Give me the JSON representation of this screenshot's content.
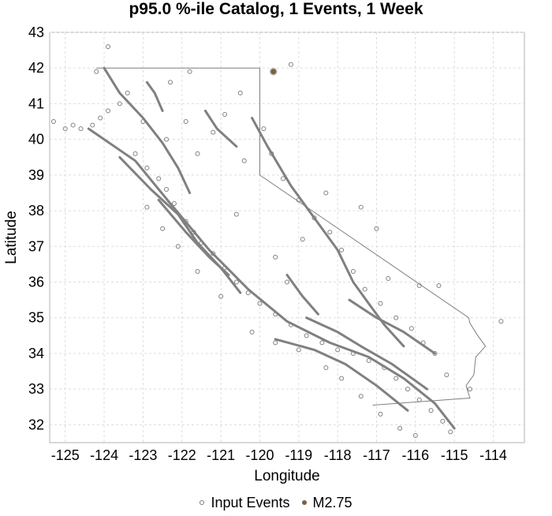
{
  "chart_data": {
    "type": "scatter",
    "title": "p95.0 %-ile Catalog, 1 Events, 1 Week",
    "xlabel": "Longitude",
    "ylabel": "Latitude",
    "xlim": [
      -125.4,
      -113.2
    ],
    "ylim": [
      31.5,
      43.0
    ],
    "x_ticks": [
      -125,
      -124,
      -123,
      -122,
      -121,
      -120,
      -119,
      -118,
      -117,
      -116,
      -115,
      -114
    ],
    "y_ticks": [
      32,
      33,
      34,
      35,
      36,
      37,
      38,
      39,
      40,
      41,
      42,
      43
    ],
    "grid": true,
    "legend_position": "bottom",
    "colors": {
      "input_events": "#808080",
      "event": "#7f5f3f",
      "boundary": "#808080"
    },
    "series": [
      {
        "name": "Input Events",
        "marker": "open-circle",
        "points": [
          [
            -124.3,
            40.4
          ],
          [
            -124.1,
            40.6
          ],
          [
            -123.9,
            40.8
          ],
          [
            -123.6,
            41.0
          ],
          [
            -123.4,
            41.3
          ],
          [
            -124.6,
            40.3
          ],
          [
            -124.8,
            40.4
          ],
          [
            -125.0,
            40.3
          ],
          [
            -125.3,
            40.5
          ],
          [
            -124.2,
            41.9
          ],
          [
            -123.2,
            39.6
          ],
          [
            -122.9,
            39.2
          ],
          [
            -122.6,
            38.9
          ],
          [
            -122.4,
            38.6
          ],
          [
            -122.2,
            38.2
          ],
          [
            -121.9,
            37.7
          ],
          [
            -121.7,
            37.4
          ],
          [
            -121.5,
            37.1
          ],
          [
            -121.2,
            36.8
          ],
          [
            -120.9,
            36.4
          ],
          [
            -120.6,
            36.0
          ],
          [
            -120.3,
            35.7
          ],
          [
            -120.0,
            35.4
          ],
          [
            -119.6,
            35.1
          ],
          [
            -119.2,
            34.8
          ],
          [
            -118.8,
            34.5
          ],
          [
            -118.4,
            34.3
          ],
          [
            -118.0,
            34.1
          ],
          [
            -117.6,
            34.0
          ],
          [
            -117.2,
            33.8
          ],
          [
            -116.8,
            33.6
          ],
          [
            -116.5,
            33.3
          ],
          [
            -116.2,
            33.0
          ],
          [
            -115.9,
            32.7
          ],
          [
            -115.6,
            32.4
          ],
          [
            -115.3,
            32.1
          ],
          [
            -115.1,
            31.8
          ],
          [
            -116.0,
            31.7
          ],
          [
            -116.4,
            31.9
          ],
          [
            -116.9,
            32.3
          ],
          [
            -117.4,
            32.8
          ],
          [
            -117.9,
            33.3
          ],
          [
            -118.3,
            33.6
          ],
          [
            -119.0,
            34.1
          ],
          [
            -119.6,
            34.3
          ],
          [
            -120.2,
            34.6
          ],
          [
            -121.0,
            35.6
          ],
          [
            -121.6,
            36.3
          ],
          [
            -122.1,
            37.0
          ],
          [
            -122.5,
            37.5
          ],
          [
            -122.9,
            38.1
          ],
          [
            -121.6,
            39.6
          ],
          [
            -121.2,
            40.2
          ],
          [
            -120.9,
            40.7
          ],
          [
            -120.5,
            41.3
          ],
          [
            -119.9,
            40.3
          ],
          [
            -119.7,
            39.6
          ],
          [
            -119.4,
            38.9
          ],
          [
            -119.0,
            38.3
          ],
          [
            -118.6,
            37.8
          ],
          [
            -118.2,
            37.4
          ],
          [
            -117.9,
            36.9
          ],
          [
            -117.6,
            36.3
          ],
          [
            -117.3,
            35.8
          ],
          [
            -116.9,
            35.4
          ],
          [
            -116.5,
            35.0
          ],
          [
            -116.1,
            34.7
          ],
          [
            -115.8,
            34.3
          ],
          [
            -115.5,
            34.0
          ],
          [
            -117.0,
            37.5
          ],
          [
            -116.7,
            36.1
          ],
          [
            -115.9,
            35.9
          ],
          [
            -115.2,
            33.4
          ],
          [
            -114.6,
            33.0
          ],
          [
            -113.8,
            34.9
          ],
          [
            -115.4,
            35.9
          ],
          [
            -119.2,
            42.1
          ],
          [
            -121.8,
            41.9
          ],
          [
            -122.3,
            41.6
          ],
          [
            -123.9,
            42.6
          ],
          [
            -118.9,
            37.2
          ],
          [
            -118.3,
            38.5
          ],
          [
            -117.4,
            38.1
          ],
          [
            -119.6,
            36.7
          ],
          [
            -120.6,
            37.9
          ],
          [
            -121.9,
            40.5
          ],
          [
            -122.4,
            40.0
          ],
          [
            -123.0,
            40.5
          ],
          [
            -120.4,
            39.4
          ],
          [
            -119.3,
            36.0
          ]
        ]
      },
      {
        "name": "M2.75",
        "marker": "filled-circle",
        "points": [
          [
            -119.65,
            41.9
          ]
        ]
      }
    ],
    "legend": [
      "Input Events",
      "M2.75"
    ]
  }
}
